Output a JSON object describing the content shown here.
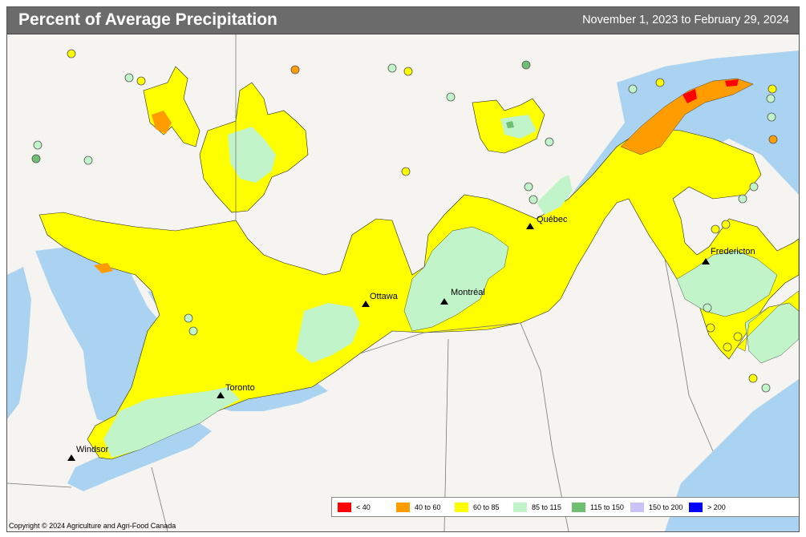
{
  "header": {
    "title": "Percent of Average Precipitation",
    "date_range": "November 1, 2023 to February 29, 2024"
  },
  "colors": {
    "water": "#a9d3f1",
    "land": "#f5f4f0",
    "c_lt40": "#ff0000",
    "c_40_60": "#ff9c00",
    "c_60_85": "#ffff00",
    "c_85_115": "#c1f5c9",
    "c_115_150": "#6ebf72",
    "c_150_200": "#c9c4f5",
    "c_gt200": "#0000ff"
  },
  "legend": {
    "items": [
      {
        "label": "< 40",
        "color": "#ff0000"
      },
      {
        "label": "40 to 60",
        "color": "#ff9c00"
      },
      {
        "label": "60 to 85",
        "color": "#ffff00"
      },
      {
        "label": "85 to 115",
        "color": "#c1f5c9"
      },
      {
        "label": "115 to 150",
        "color": "#6ebf72"
      },
      {
        "label": "150 to 200",
        "color": "#c9c4f5"
      },
      {
        "label": "> 200",
        "color": "#0000ff"
      }
    ]
  },
  "cities": [
    {
      "name": "Québec"
    },
    {
      "name": "Ottawa"
    },
    {
      "name": "Montréal"
    },
    {
      "name": "Toronto"
    },
    {
      "name": "Windsor"
    },
    {
      "name": "Fredericton"
    }
  ],
  "footer": {
    "copyright": "Copyright © 2024 Agriculture and Agri-Food Canada"
  }
}
